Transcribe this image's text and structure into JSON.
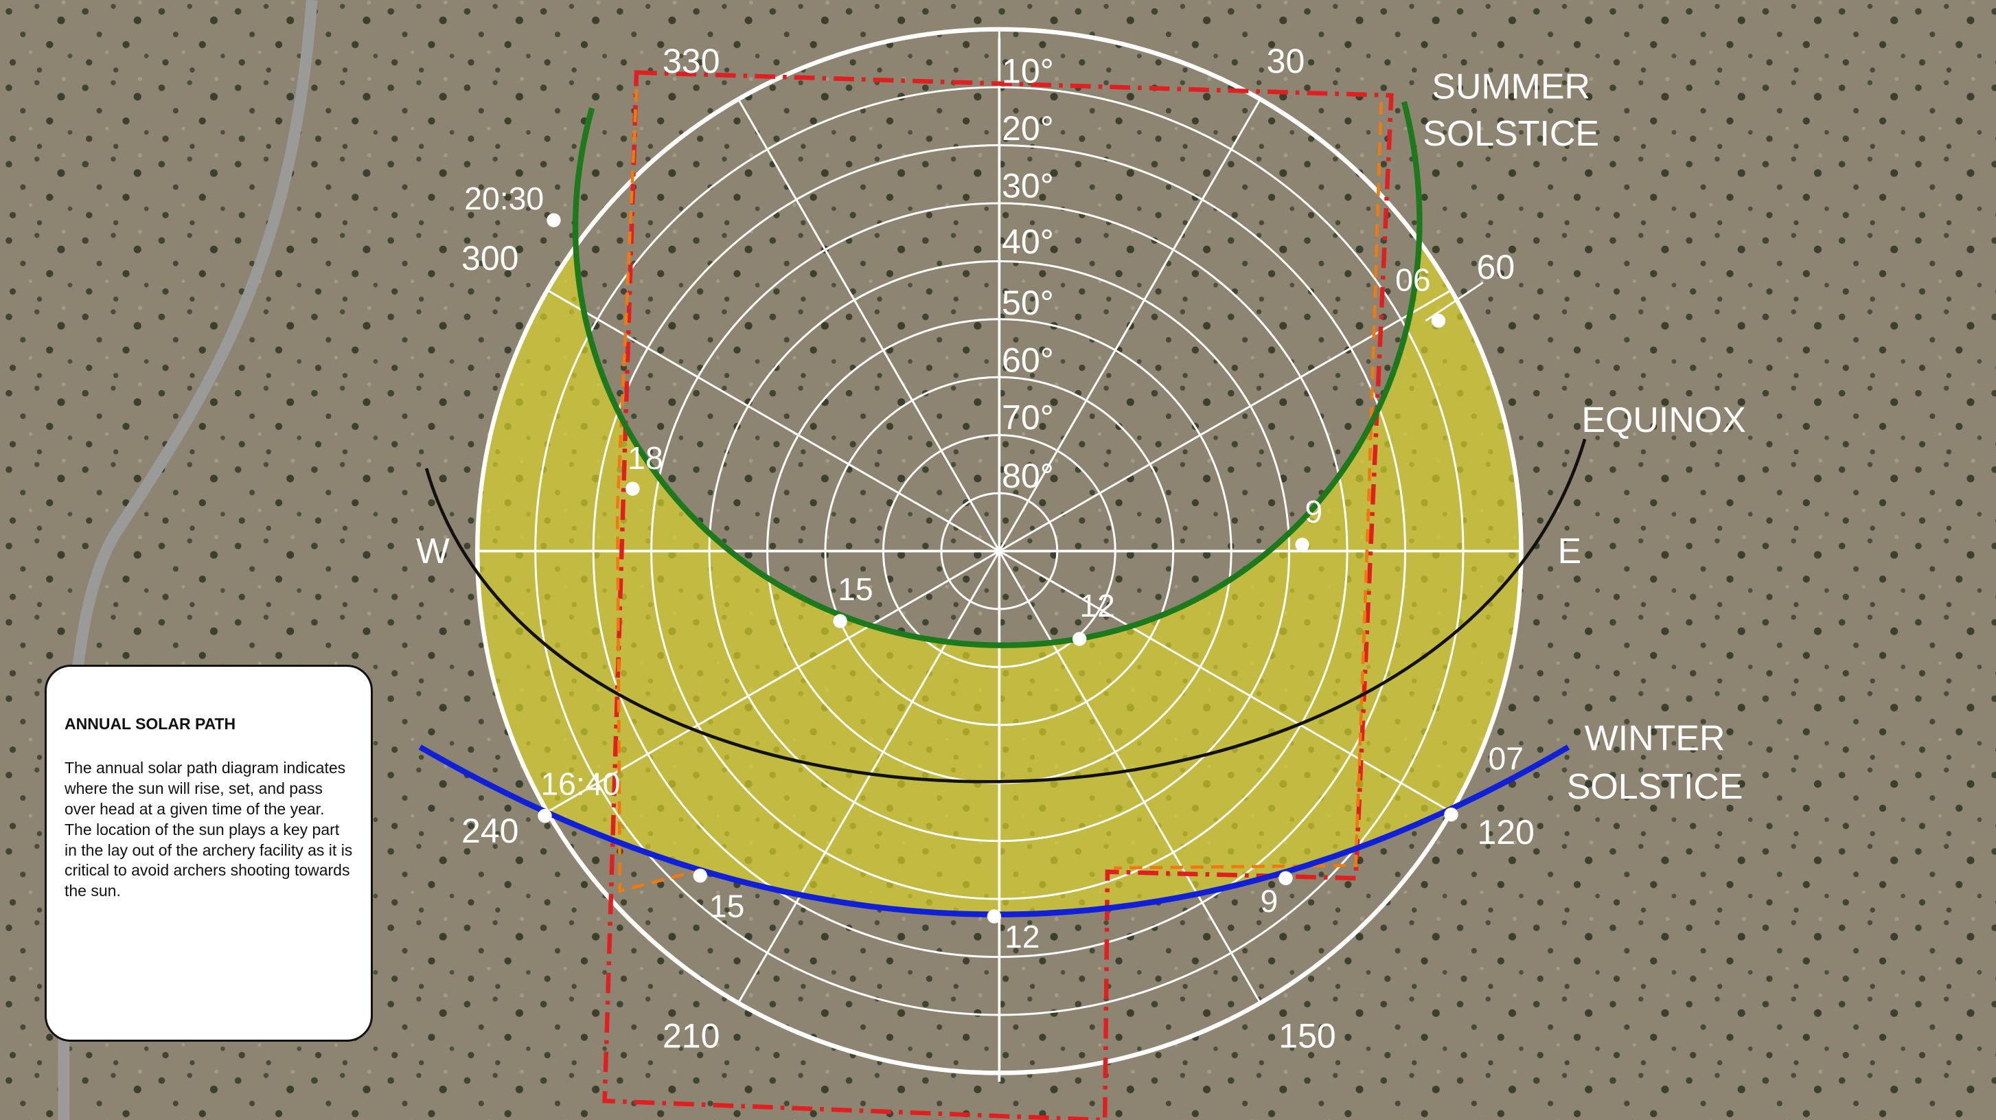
{
  "azimuth_labels": [
    "330",
    "30",
    "300",
    "60",
    "240",
    "120",
    "210",
    "150"
  ],
  "cardinal_labels": [
    "W",
    "E"
  ],
  "altitude_labels": [
    "10°",
    "20°",
    "30°",
    "40°",
    "50°",
    "60°",
    "70°",
    "80°"
  ],
  "curves": {
    "summer_solstice": [
      "SUMMER",
      "SOLSTICE"
    ],
    "equinox": "EQUINOX",
    "winter_solstice": [
      "WINTER",
      "SOLSTICE"
    ]
  },
  "summer_times": [
    "20:30",
    "06",
    "18",
    "9",
    "15",
    "12"
  ],
  "winter_times": [
    "16:40",
    "07",
    "15",
    "12",
    "9"
  ],
  "info": {
    "title": "ANNUAL SOLAR PATH",
    "body": "The annual solar path diagram indicates where the sun will rise, set, and pass over head at a given time of the year.  The location of the sun plays a key part in the lay out of the archery facility as it is critical to avoid archers shooting towards the sun."
  }
}
